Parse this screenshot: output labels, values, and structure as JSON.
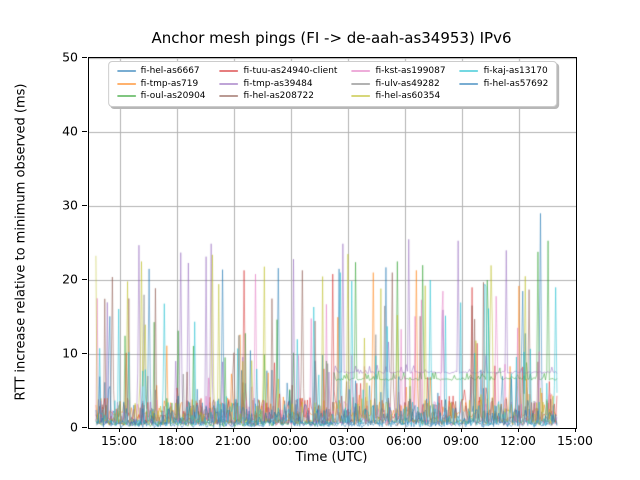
{
  "chart_data": {
    "type": "line",
    "title": "Anchor mesh pings (FI -> de-aah-as34953) IPv6",
    "xlabel": "Time (UTC)",
    "ylabel": "RTT increase relative to minimum observed (ms)",
    "ylim": [
      0,
      50
    ],
    "yticks": [
      0,
      10,
      20,
      30,
      40,
      50
    ],
    "xlim_hours": [
      13.3667,
      39.0
    ],
    "xtick_hours": [
      15,
      18,
      21,
      24,
      27,
      30,
      33,
      36,
      39
    ],
    "xtick_labels": [
      "15:00",
      "18:00",
      "21:00",
      "00:00",
      "03:00",
      "06:00",
      "09:00",
      "12:00",
      "15:00"
    ],
    "data_start_hour": 13.73,
    "data_end_hour": 38.0,
    "sample_minutes": 4,
    "grid": true,
    "grid_color": "#b0b0b0",
    "spine_color": "#000000",
    "legend_position": "upper center",
    "legend_columns": 4,
    "series": [
      {
        "name": "fi-hel-as6667",
        "color": "#1f77b4",
        "alpha": 0.5,
        "baseline": 0.45,
        "noise": 0.5,
        "spike_prob": 0.06,
        "spike_typ": 3,
        "spike_max": 16,
        "small_prob": 0.25,
        "small_max": 3,
        "seed": 101
      },
      {
        "name": "fi-tmp-as719",
        "color": "#ff7f0e",
        "alpha": 0.5,
        "baseline": 1.8,
        "noise": 0.7,
        "spike_prob": 0.05,
        "spike_typ": 3,
        "spike_max": 15,
        "small_prob": 0.3,
        "small_max": 2.5,
        "seed": 202
      },
      {
        "name": "fi-oul-as20904",
        "color": "#2ca02c",
        "alpha": 0.5,
        "baseline": 0.6,
        "noise": 0.5,
        "spike_prob": 0.05,
        "spike_typ": 3,
        "spike_max": 18,
        "small_prob": 0.25,
        "small_max": 3,
        "seed": 303,
        "shift": {
          "start_hour": 26.25,
          "value": 6.6,
          "noise": 0.2
        }
      },
      {
        "name": "fi-tuu-as24940-client",
        "color": "#d62728",
        "alpha": 0.5,
        "baseline": 1.2,
        "noise": 0.6,
        "spike_prob": 0.08,
        "spike_typ": 3,
        "spike_max": 12,
        "small_prob": 0.3,
        "small_max": 3,
        "seed": 404
      },
      {
        "name": "fi-tmp-as39484",
        "color": "#9467bd",
        "alpha": 0.5,
        "baseline": 0.7,
        "noise": 0.5,
        "spike_prob": 0.07,
        "spike_typ": 4,
        "spike_max": 25,
        "small_prob": 0.22,
        "small_max": 3,
        "seed": 505,
        "shift": {
          "start_hour": 26.2,
          "value": 7.5,
          "noise": 0.18
        }
      },
      {
        "name": "fi-hel-as208722",
        "color": "#8c564b",
        "alpha": 0.5,
        "baseline": 0.8,
        "noise": 0.55,
        "spike_prob": 0.06,
        "spike_typ": 3,
        "spike_max": 20,
        "small_prob": 0.25,
        "small_max": 3,
        "seed": 606
      },
      {
        "name": "fi-kst-as199087",
        "color": "#e377c2",
        "alpha": 0.5,
        "baseline": 0.9,
        "noise": 0.55,
        "spike_prob": 0.07,
        "spike_typ": 3,
        "spike_max": 18,
        "small_prob": 0.25,
        "small_max": 3,
        "seed": 707
      },
      {
        "name": "fi-ulv-as49282",
        "color": "#7f7f7f",
        "alpha": 0.5,
        "baseline": 0.8,
        "noise": 0.5,
        "spike_prob": 0.04,
        "spike_typ": 3,
        "spike_max": 13,
        "small_prob": 0.22,
        "small_max": 2.5,
        "seed": 808
      },
      {
        "name": "fi-hel-as60354",
        "color": "#bcbd22",
        "alpha": 0.5,
        "baseline": 0.9,
        "noise": 0.6,
        "spike_prob": 0.08,
        "spike_typ": 4,
        "spike_max": 24,
        "small_prob": 0.25,
        "small_max": 3,
        "seed": 909
      },
      {
        "name": "fi-kaj-as13170",
        "color": "#17becf",
        "alpha": 0.5,
        "baseline": 0.7,
        "noise": 0.5,
        "spike_prob": 0.08,
        "spike_typ": 3,
        "spike_max": 20,
        "small_prob": 0.3,
        "small_max": 3,
        "seed": 1010
      },
      {
        "name": "fi-hel-as57692",
        "color": "#1f77b4",
        "alpha": 0.5,
        "baseline": 0.55,
        "noise": 0.5,
        "spike_prob": 0.1,
        "spike_typ": 2,
        "spike_max": 7,
        "small_prob": 0.35,
        "small_max": 2.5,
        "seed": 1111
      }
    ],
    "highlight_spikes": [
      {
        "s": "fi-hel-as208722",
        "t": 14.6,
        "v": 20.4
      },
      {
        "s": "fi-hel-as60354",
        "t": 15.4,
        "v": 19.8
      },
      {
        "s": "fi-tmp-as39484",
        "t": 16.0,
        "v": 24.7
      },
      {
        "s": "fi-hel-as60354",
        "t": 16.1,
        "v": 22.5
      },
      {
        "s": "fi-ulv-as49282",
        "t": 16.25,
        "v": 18.0
      },
      {
        "s": "fi-hel-as6667",
        "t": 16.5,
        "v": 21.5
      },
      {
        "s": "fi-kaj-as13170",
        "t": 17.3,
        "v": 16.8
      },
      {
        "s": "fi-tmp-as39484",
        "t": 18.2,
        "v": 23.7
      },
      {
        "s": "fi-tmp-as39484",
        "t": 18.6,
        "v": 22.3
      },
      {
        "s": "fi-tmp-as39484",
        "t": 19.8,
        "v": 24.9
      },
      {
        "s": "fi-hel-as60354",
        "t": 19.85,
        "v": 23.4
      },
      {
        "s": "fi-hel-as6667",
        "t": 20.4,
        "v": 21.4
      },
      {
        "s": "fi-tuu-as24940-client",
        "t": 21.5,
        "v": 21.3
      },
      {
        "s": "fi-kst-as199087",
        "t": 22.1,
        "v": 20.8
      },
      {
        "s": "fi-hel-as6667",
        "t": 23.3,
        "v": 21.6
      },
      {
        "s": "fi-hel-as208722",
        "t": 24.6,
        "v": 21.3
      },
      {
        "s": "fi-tuu-as24940-client",
        "t": 26.2,
        "v": 20.8
      },
      {
        "s": "fi-hel-as6667",
        "t": 26.5,
        "v": 21.5
      },
      {
        "s": "fi-kaj-as13170",
        "t": 26.6,
        "v": 21.0
      },
      {
        "s": "fi-tmp-as39484",
        "t": 26.7,
        "v": 24.9
      },
      {
        "s": "fi-hel-as60354",
        "t": 27.0,
        "v": 23.5
      },
      {
        "s": "fi-oul-as20904",
        "t": 27.4,
        "v": 22.4
      },
      {
        "s": "fi-tmp-as719",
        "t": 28.3,
        "v": 21.0
      },
      {
        "s": "fi-ulv-as49282",
        "t": 28.9,
        "v": 16.5
      },
      {
        "s": "fi-hel-as6667",
        "t": 29.0,
        "v": 21.7
      },
      {
        "s": "fi-hel-as208722",
        "t": 29.3,
        "v": 21.0
      },
      {
        "s": "fi-oul-as20904",
        "t": 29.6,
        "v": 22.5
      },
      {
        "s": "fi-tmp-as39484",
        "t": 30.2,
        "v": 25.5
      },
      {
        "s": "fi-tmp-as719",
        "t": 30.6,
        "v": 21.3
      },
      {
        "s": "fi-oul-as20904",
        "t": 30.9,
        "v": 22.0
      },
      {
        "s": "fi-kaj-as13170",
        "t": 31.3,
        "v": 20.0
      },
      {
        "s": "fi-kst-as199087",
        "t": 32.0,
        "v": 18.5
      },
      {
        "s": "fi-tmp-as39484",
        "t": 32.8,
        "v": 25.3
      },
      {
        "s": "fi-tuu-as24940-client",
        "t": 33.5,
        "v": 19.0
      },
      {
        "s": "fi-oul-as20904",
        "t": 34.3,
        "v": 20.0
      },
      {
        "s": "fi-kst-as199087",
        "t": 34.8,
        "v": 17.8
      },
      {
        "s": "fi-tmp-as39484",
        "t": 35.3,
        "v": 24.0
      },
      {
        "s": "fi-tmp-as719",
        "t": 36.0,
        "v": 19.2
      },
      {
        "s": "fi-hel-as6667",
        "t": 36.2,
        "v": 18.5
      },
      {
        "s": "fi-hel-as60354",
        "t": 36.3,
        "v": 20.5
      },
      {
        "s": "fi-hel-as208722",
        "t": 36.5,
        "v": 18.7
      },
      {
        "s": "fi-oul-as20904",
        "t": 37.0,
        "v": 23.8
      },
      {
        "s": "fi-hel-as6667",
        "t": 37.15,
        "v": 29.0
      },
      {
        "s": "fi-oul-as20904",
        "t": 37.5,
        "v": 25.3
      },
      {
        "s": "fi-kaj-as13170",
        "t": 37.9,
        "v": 19.0
      }
    ]
  }
}
